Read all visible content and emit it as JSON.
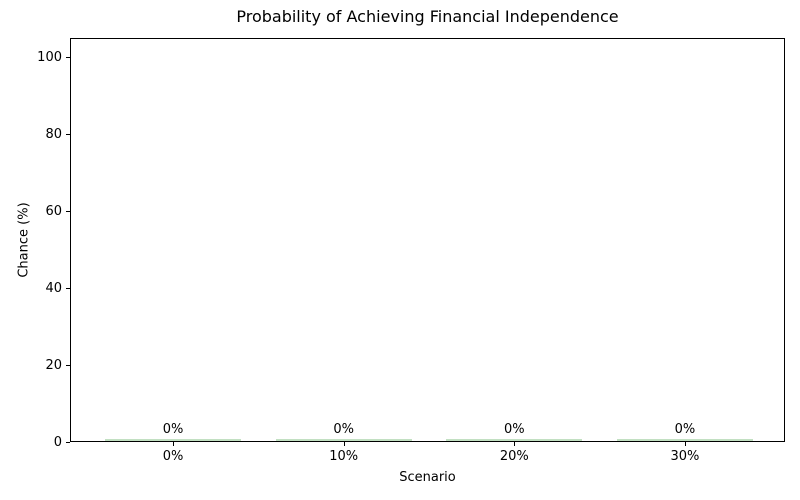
{
  "chart_data": {
    "type": "bar",
    "title": "Probability of Achieving Financial Independence",
    "xlabel": "Scenario",
    "ylabel": "Chance (%)",
    "categories": [
      "0%",
      "10%",
      "20%",
      "30%"
    ],
    "values": [
      0,
      0,
      0,
      0
    ],
    "bar_labels": [
      "0%",
      "0%",
      "0%",
      "0%"
    ],
    "yticks": [
      0,
      20,
      40,
      60,
      80,
      100
    ],
    "ylim": [
      0,
      105
    ],
    "grid": false,
    "legend_position": "none",
    "bar_color": "#c2e0c2",
    "axis_color": "#000000",
    "background_color": "#ffffff"
  }
}
